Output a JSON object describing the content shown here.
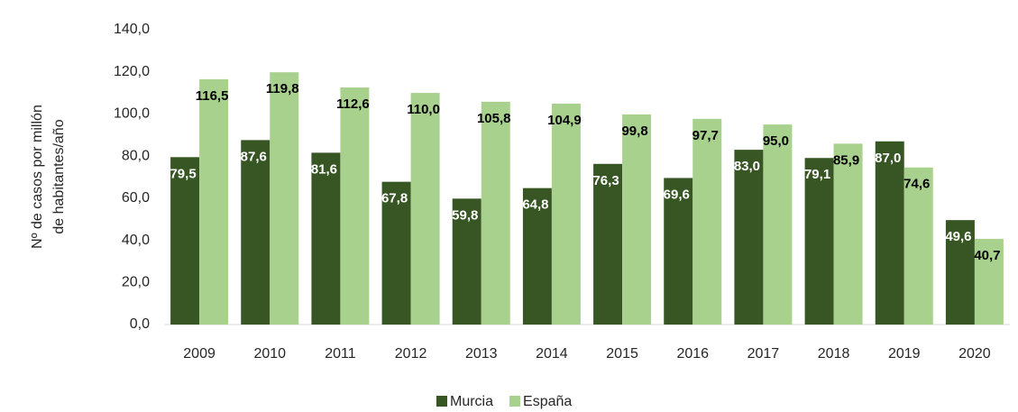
{
  "chart_data": {
    "type": "bar",
    "ylabel": [
      "Nº de casos por millón",
      "de habitantes/año"
    ],
    "categories": [
      "2009",
      "2010",
      "2011",
      "2012",
      "2013",
      "2014",
      "2015",
      "2016",
      "2017",
      "2018",
      "2019",
      "2020"
    ],
    "series": [
      {
        "name": "Murcia",
        "color": "#375623",
        "label_color": "#ffffff",
        "values": [
          79.5,
          87.6,
          81.6,
          67.8,
          59.8,
          64.8,
          76.3,
          69.6,
          83.0,
          79.1,
          87.0,
          49.6
        ],
        "value_labels": [
          "79,5",
          "87,6",
          "81,6",
          "67,8",
          "59,8",
          "64,8",
          "76,3",
          "69,6",
          "83,0",
          "79,1",
          "87,0",
          "49,6"
        ]
      },
      {
        "name": "España",
        "color": "#a9d18e",
        "label_color": "#000000",
        "values": [
          116.5,
          119.8,
          112.6,
          110.0,
          105.8,
          104.9,
          99.8,
          97.7,
          95.0,
          85.9,
          74.6,
          40.7
        ],
        "value_labels": [
          "116,5",
          "119,8",
          "112,6",
          "110,0",
          "105,8",
          "104,9",
          "99,8",
          "97,7",
          "95,0",
          "85,9",
          "74,6",
          "40,7"
        ]
      }
    ],
    "ylim": [
      0,
      140
    ],
    "yticks": [
      {
        "value": 0,
        "label": "0,0"
      },
      {
        "value": 20,
        "label": "20,0"
      },
      {
        "value": 40,
        "label": "40,0"
      },
      {
        "value": 60,
        "label": "60,0"
      },
      {
        "value": 80,
        "label": "80,0"
      },
      {
        "value": 100,
        "label": "100,0"
      },
      {
        "value": 120,
        "label": "120,0"
      },
      {
        "value": 140,
        "label": "140,0"
      }
    ],
    "grid": false,
    "legend": "bottom"
  }
}
